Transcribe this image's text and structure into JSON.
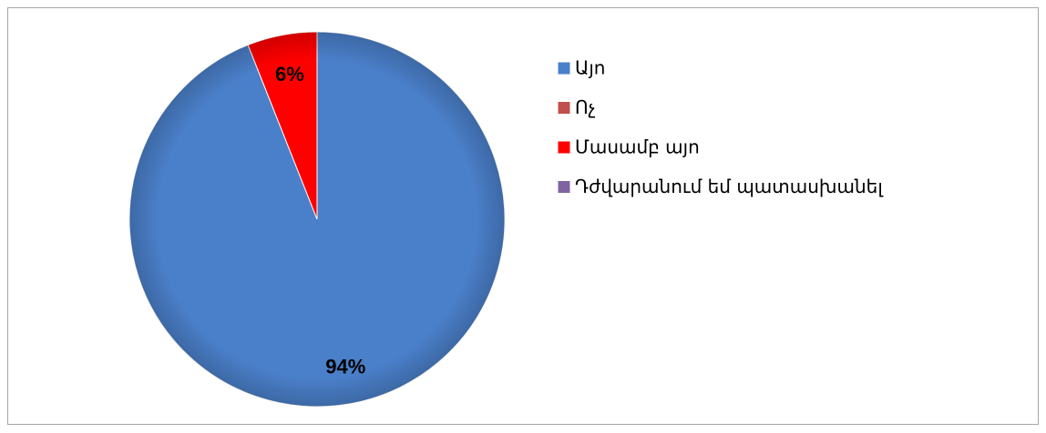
{
  "chart_data": {
    "type": "pie",
    "categories": [
      "Այո",
      "Ոչ",
      "Մասամբ այո",
      "Դժվարանում եմ պատասխանել"
    ],
    "values": [
      94,
      0,
      6,
      0
    ],
    "value_labels": [
      "94%",
      null,
      "6%",
      null
    ],
    "colors": [
      "#4a7fc9",
      "#c0504d",
      "#ff0000",
      "#8064a2"
    ],
    "legend": "right"
  }
}
